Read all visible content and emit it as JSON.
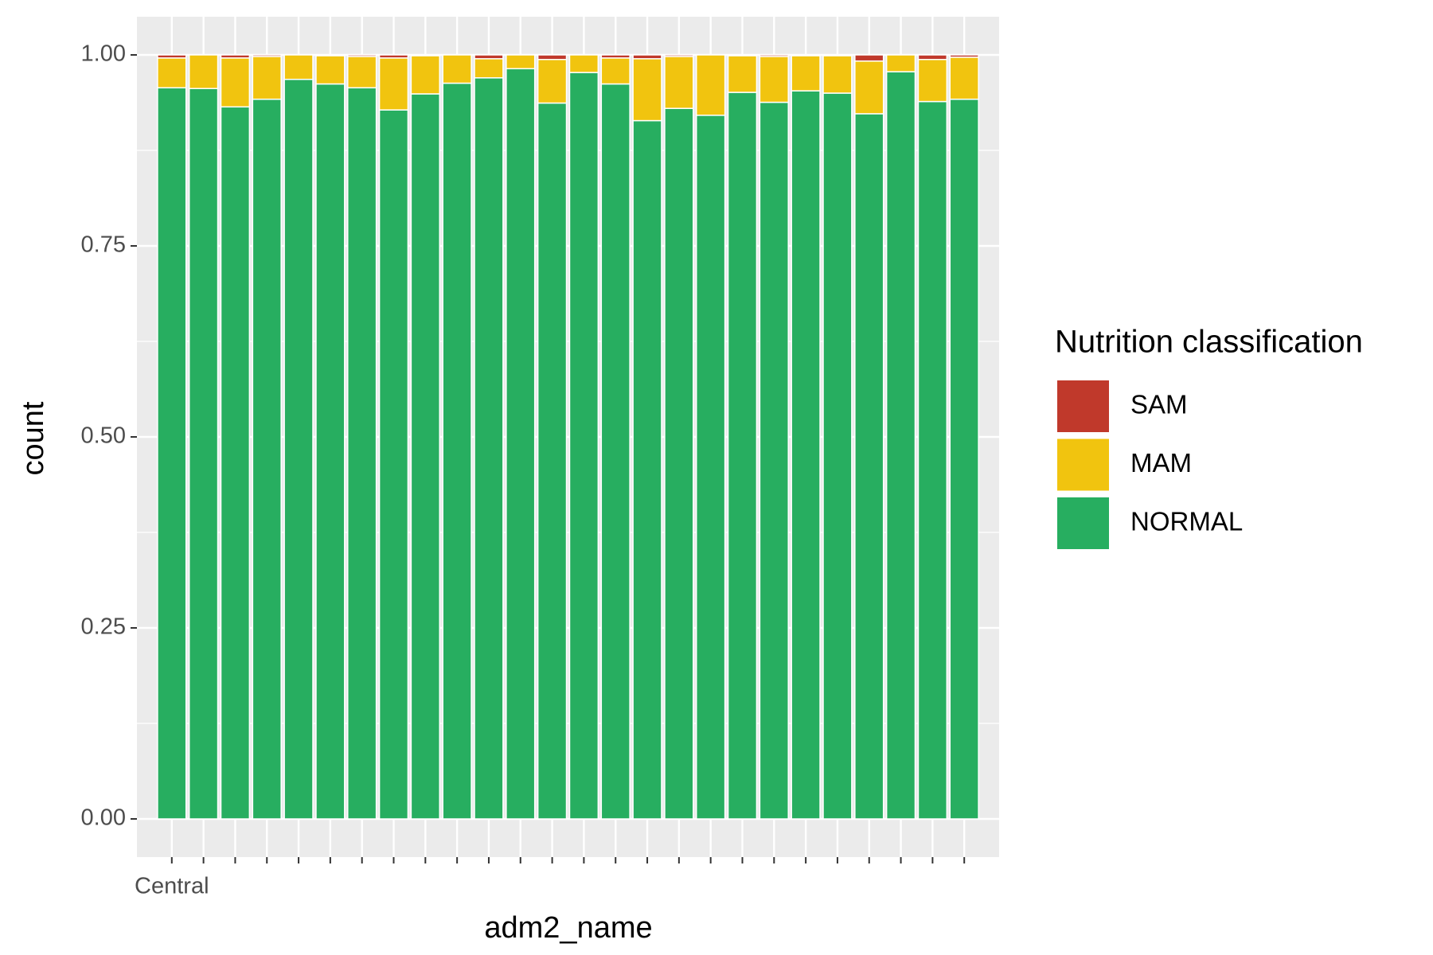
{
  "chart_data": {
    "type": "bar",
    "stacked": true,
    "x_label": "adm2_name",
    "y_label": "count",
    "legend_title": "Nutrition classification",
    "legend": "right",
    "grid": true,
    "categories": [
      "Central",
      null,
      null,
      null,
      null,
      null,
      null,
      null,
      null,
      null,
      null,
      null,
      null,
      null,
      null,
      null,
      null,
      null,
      null,
      null,
      null,
      null,
      null,
      null,
      null,
      null
    ],
    "series": [
      {
        "name": "SAM",
        "color": "#c0392b",
        "values": [
          0.004,
          0,
          0.004,
          0.002,
          0,
          0.001,
          0.002,
          0.004,
          0.001,
          0,
          0.005,
          0,
          0.006,
          0,
          0.004,
          0.005,
          0.002,
          0,
          0.001,
          0.002,
          0.001,
          0.001,
          0.008,
          0,
          0.006,
          0.003
        ]
      },
      {
        "name": "MAM",
        "color": "#f1c40f",
        "values": [
          0.039,
          0.044,
          0.064,
          0.056,
          0.032,
          0.037,
          0.041,
          0.068,
          0.05,
          0.037,
          0.025,
          0.018,
          0.057,
          0.023,
          0.034,
          0.081,
          0.068,
          0.079,
          0.048,
          0.06,
          0.046,
          0.049,
          0.069,
          0.022,
          0.055,
          0.055
        ]
      },
      {
        "name": "NORMAL",
        "color": "#27ae60",
        "values": [
          0.957,
          0.956,
          0.932,
          0.942,
          0.968,
          0.962,
          0.957,
          0.928,
          0.949,
          0.963,
          0.97,
          0.982,
          0.937,
          0.977,
          0.962,
          0.914,
          0.93,
          0.921,
          0.951,
          0.938,
          0.953,
          0.95,
          0.923,
          0.978,
          0.939,
          0.942
        ]
      }
    ],
    "ylim": [
      -0.05,
      1.05
    ],
    "yticks": [
      {
        "value": 0,
        "label": "0.00"
      },
      {
        "value": 0.25,
        "label": "0.25"
      },
      {
        "value": 0.5,
        "label": "0.50"
      },
      {
        "value": 0.75,
        "label": "0.75"
      },
      {
        "value": 1,
        "label": "1.00"
      }
    ]
  }
}
